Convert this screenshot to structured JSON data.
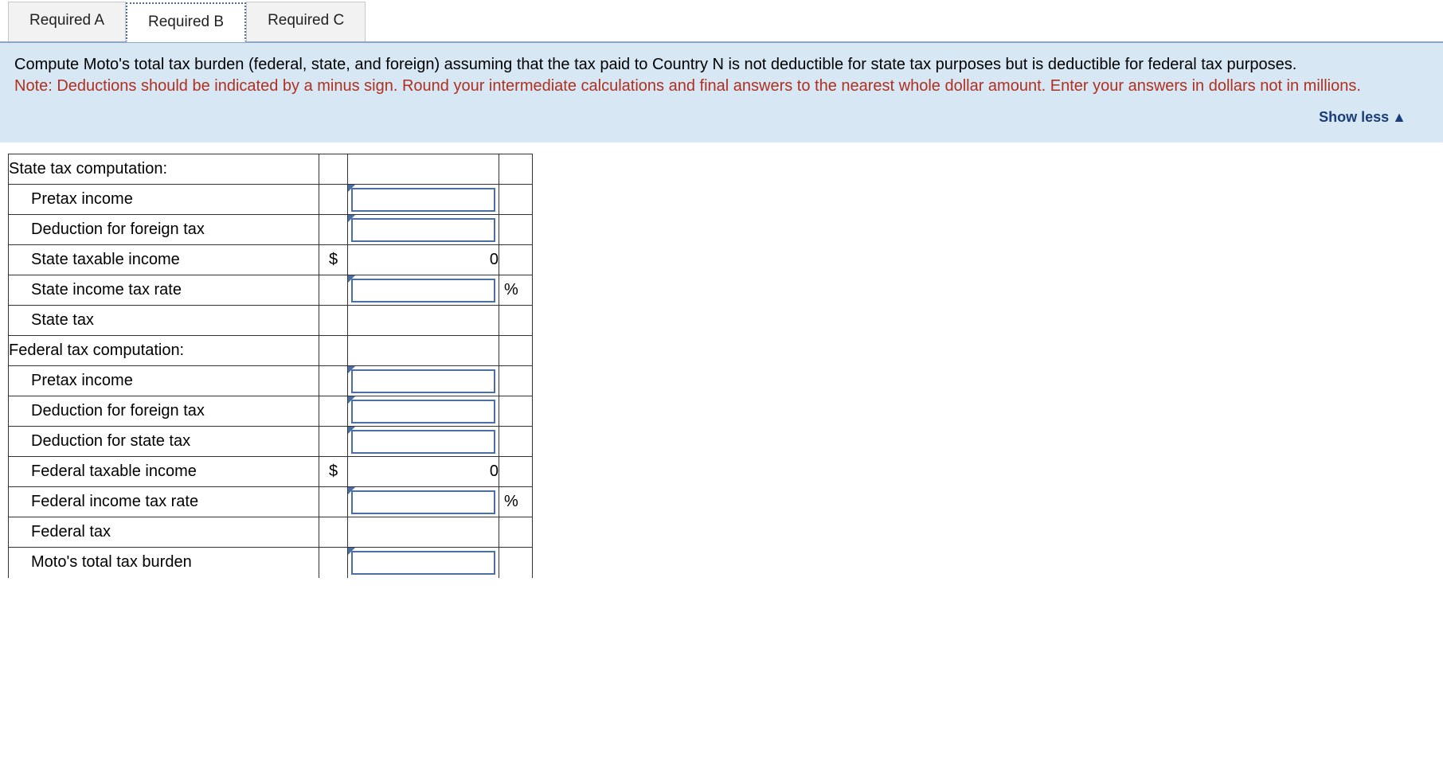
{
  "tabs": [
    {
      "label": "Required A",
      "active": false
    },
    {
      "label": "Required B",
      "active": true
    },
    {
      "label": "Required C",
      "active": false
    }
  ],
  "instructions": {
    "main": "Compute Moto's total tax burden (federal, state, and foreign) assuming that the tax paid to Country N is not deductible for state tax purposes but is deductible for federal tax purposes.",
    "note": "Note: Deductions should be indicated by a minus sign. Round your intermediate calculations and final answers to the nearest whole dollar amount. Enter your answers in dollars not in millions."
  },
  "show_less_label": "Show less",
  "currency_symbol": "$",
  "percent_symbol": "%",
  "rows": {
    "state_header": "State tax computation:",
    "pretax_income": "Pretax income",
    "ded_foreign": "Deduction for foreign tax",
    "state_taxable": "State taxable income",
    "state_taxable_val": "0",
    "state_rate": "State income tax rate",
    "state_tax": "State tax",
    "fed_header": "Federal tax computation:",
    "pretax_income2": "Pretax income",
    "ded_foreign2": "Deduction for foreign tax",
    "ded_state": "Deduction for state tax",
    "fed_taxable": "Federal taxable income",
    "fed_taxable_val": "0",
    "fed_rate": "Federal income tax rate",
    "fed_tax": "Federal tax",
    "total_burden": "Moto's total tax burden"
  },
  "colors": {
    "instruction_bg": "#d7e7f4",
    "note_color": "#b03020",
    "link_color": "#1a3e7a",
    "input_border": "#4a6fa5",
    "tab_bg": "#f2f2f2"
  }
}
